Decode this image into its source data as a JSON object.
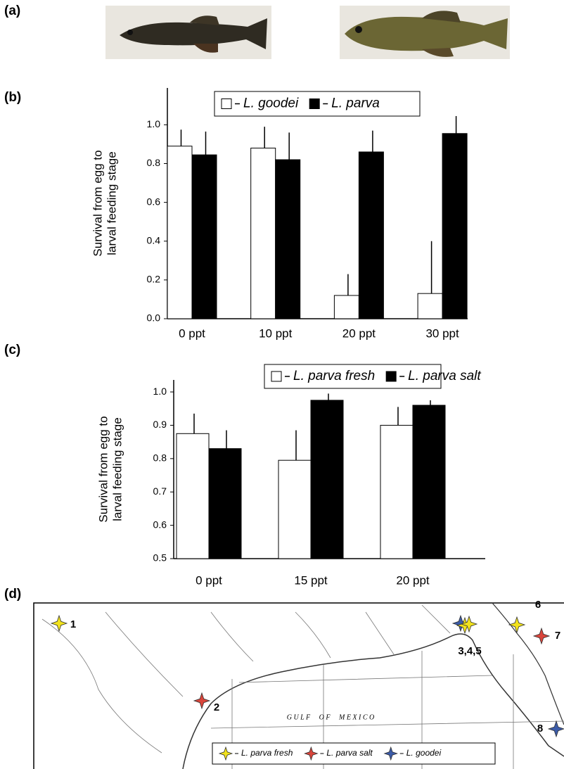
{
  "panels": [
    "(a)",
    "(b)",
    "(c)",
    "(d)"
  ],
  "chart_data": [
    {
      "type": "bar",
      "categories": [
        "0 ppt",
        "10 ppt",
        "20 ppt",
        "30 ppt"
      ],
      "series": [
        {
          "name": "L. goodei",
          "color": "#ffffff",
          "values": [
            0.89,
            0.88,
            0.12,
            0.13
          ],
          "errors": [
            0.085,
            0.11,
            0.11,
            0.27
          ]
        },
        {
          "name": "L. parva",
          "color": "#000000",
          "values": [
            0.845,
            0.82,
            0.86,
            0.955
          ],
          "errors": [
            0.12,
            0.14,
            0.11,
            0.09
          ]
        }
      ],
      "ylim": [
        0,
        1.19
      ],
      "yticks": [
        {
          "value": 0,
          "label": "0.0"
        },
        0.2,
        0.4,
        0.6,
        0.8,
        {
          "value": 1,
          "label": "1.0"
        }
      ],
      "ylabel": [
        "Survival from egg to",
        "larval feeding stage"
      ],
      "legend": "top",
      "grid": false
    },
    {
      "type": "bar",
      "categories": [
        "0 ppt",
        "15 ppt",
        "20 ppt"
      ],
      "series": [
        {
          "name": "L. parva fresh",
          "color": "#ffffff",
          "values": [
            0.875,
            0.795,
            0.9
          ],
          "errors": [
            0.06,
            0.09,
            0.055
          ]
        },
        {
          "name": "L. parva salt",
          "color": "#000000",
          "values": [
            0.83,
            0.975,
            0.96
          ],
          "errors": [
            0.055,
            0.02,
            0.015
          ]
        }
      ],
      "ylim": [
        0.5,
        1.036
      ],
      "yticks": [
        0.5,
        0.6,
        0.7,
        0.8,
        0.9,
        {
          "value": 1,
          "label": "1.0"
        }
      ],
      "ylabel": [
        "Survival from egg to",
        "larval feeding stage"
      ],
      "legend": "top",
      "grid": false
    }
  ],
  "map": {
    "sea_label": "G U L F     O F     M E X I C O",
    "sites": [
      {
        "label": "1",
        "color": "#f2e21c"
      },
      {
        "label": "2",
        "color": "#d9453b"
      },
      {
        "label": "3,4,5",
        "color": "#f2e21c"
      },
      {
        "label": "6",
        "color": "#f2e21c"
      },
      {
        "label": "7",
        "color": "#d9453b"
      },
      {
        "label": "8",
        "color": "#3b5ba8"
      }
    ],
    "legend": [
      {
        "name": "L. parva fresh",
        "color": "#f2e21c"
      },
      {
        "name": "L. parva salt",
        "color": "#d9453b"
      },
      {
        "name": "L. goodei",
        "color": "#3b5ba8"
      }
    ]
  }
}
